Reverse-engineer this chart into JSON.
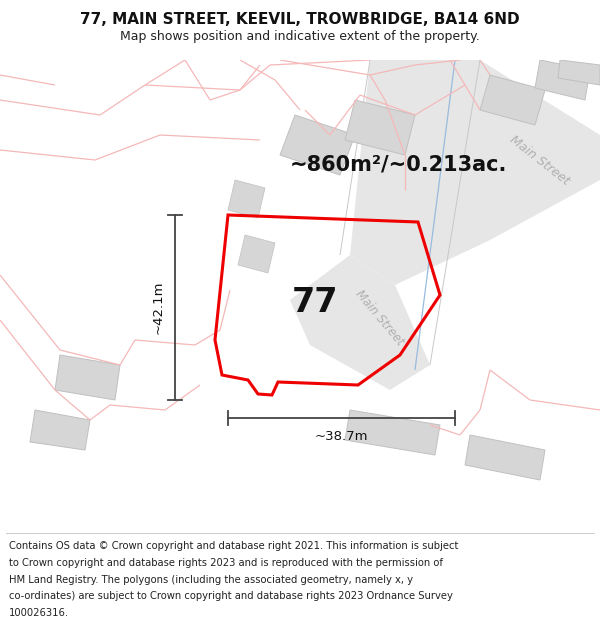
{
  "title_line1": "77, MAIN STREET, KEEVIL, TROWBRIDGE, BA14 6ND",
  "title_line2": "Map shows position and indicative extent of the property.",
  "area_text": "~860m²/~0.213ac.",
  "label_77": "77",
  "dim_width": "~38.7m",
  "dim_height": "~42.1m",
  "road_label": "Main Street",
  "footer_lines": [
    "Contains OS data © Crown copyright and database right 2021. This information is subject",
    "to Crown copyright and database rights 2023 and is reproduced with the permission of",
    "HM Land Registry. The polygons (including the associated geometry, namely x, y",
    "co-ordinates) are subject to Crown copyright and database rights 2023 Ordnance Survey",
    "100026316."
  ],
  "bg_color": "#ffffff",
  "road_fill": "#e6e6e6",
  "building_fill": "#d6d6d6",
  "building_edge": "#c0c0c0",
  "boundary_red": "#ee0000",
  "light_red": "#f5b8b8",
  "dim_color": "#444444",
  "road_label_color": "#b0b0b0",
  "title_fontsize": 11,
  "subtitle_fontsize": 9,
  "footer_fontsize": 7.2,
  "area_fontsize": 15,
  "label77_fontsize": 24,
  "dim_fontsize": 9.5
}
